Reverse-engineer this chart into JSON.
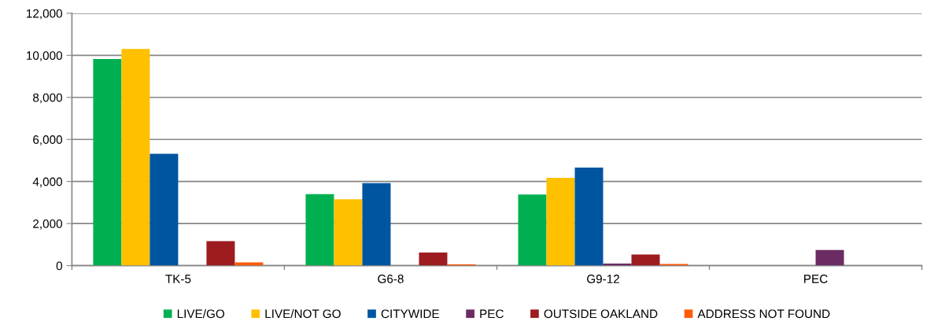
{
  "chart_data": {
    "type": "bar",
    "categories": [
      "TK-5",
      "G6-8",
      "G9-12",
      "PEC"
    ],
    "series": [
      {
        "name": "LIVE/GO",
        "color": "#00b050",
        "values": [
          9830,
          3400,
          3380,
          0
        ]
      },
      {
        "name": "LIVE/NOT GO",
        "color": "#ffc000",
        "values": [
          10300,
          3160,
          4180,
          0
        ]
      },
      {
        "name": "CITYWIDE",
        "color": "#0055a0",
        "values": [
          5320,
          3920,
          4660,
          0
        ]
      },
      {
        "name": "PEC",
        "color": "#6a2c63",
        "values": [
          0,
          0,
          100,
          740
        ]
      },
      {
        "name": "OUTSIDE OAKLAND",
        "color": "#9c1c20",
        "values": [
          1160,
          620,
          530,
          0
        ]
      },
      {
        "name": "ADDRESS NOT FOUND",
        "color": "#ff5a0a",
        "values": [
          150,
          60,
          80,
          0
        ]
      }
    ],
    "ylim": [
      0,
      12000
    ],
    "yticks": [
      {
        "value": 0,
        "label": "0"
      },
      {
        "value": 2000,
        "label": "2,000"
      },
      {
        "value": 4000,
        "label": "4,000"
      },
      {
        "value": 6000,
        "label": "6,000"
      },
      {
        "value": 8000,
        "label": "8,000"
      },
      {
        "value": 10000,
        "label": "10,000"
      },
      {
        "value": 12000,
        "label": "12,000"
      }
    ],
    "grid": "y",
    "legend": "bottom"
  }
}
